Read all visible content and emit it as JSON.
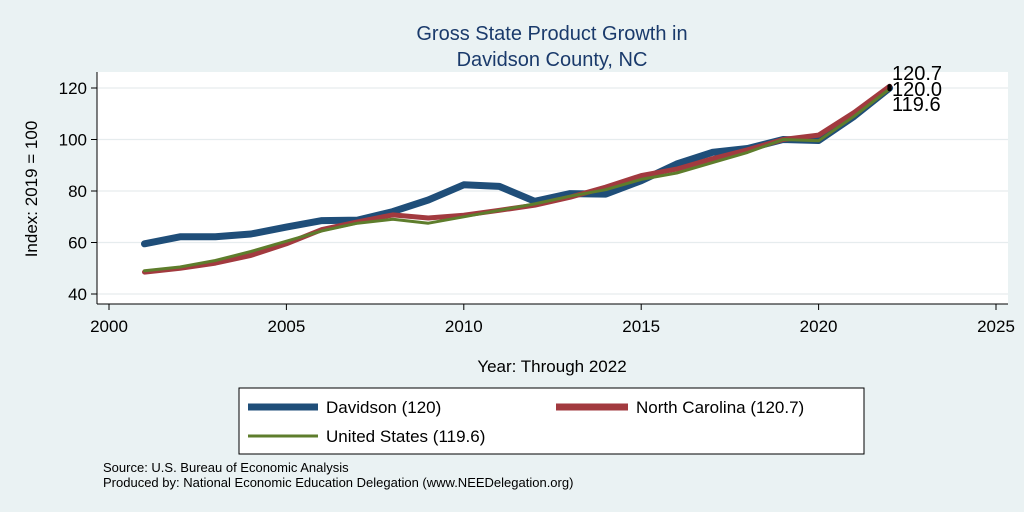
{
  "chart_data": {
    "type": "line",
    "title": [
      "Gross State Product Growth in",
      "Davidson County, NC"
    ],
    "xlabel": "Year: Through 2022",
    "ylabel": "Index: 2019 = 100",
    "xlim": [
      2000,
      2025
    ],
    "ylim": [
      40,
      120
    ],
    "x_ticks": [
      "2000",
      "2005",
      "2010",
      "2015",
      "2020",
      "2025"
    ],
    "y_ticks": [
      "40",
      "60",
      "80",
      "100",
      "120"
    ],
    "grid": true,
    "legend_position": "bottom",
    "x": [
      2001,
      2002,
      2003,
      2004,
      2005,
      2006,
      2007,
      2008,
      2009,
      2010,
      2011,
      2012,
      2013,
      2014,
      2015,
      2016,
      2017,
      2018,
      2019,
      2020,
      2021,
      2022
    ],
    "series": [
      {
        "name": "Davidson  (120)",
        "color": "#1f4e79",
        "values": [
          59.5,
          62.2,
          62.2,
          63.3,
          66.0,
          68.5,
          68.7,
          72.0,
          76.5,
          82.4,
          81.8,
          76.0,
          79.0,
          78.8,
          84.0,
          90.5,
          95.0,
          96.5,
          100.0,
          99.6,
          109.0,
          120.0
        ]
      },
      {
        "name": "North Carolina (120.7)",
        "color": "#a23a3f",
        "values": [
          48.5,
          50.0,
          52.0,
          55.0,
          59.5,
          65.0,
          68.0,
          70.7,
          69.5,
          70.6,
          72.5,
          74.5,
          77.6,
          81.5,
          86.0,
          88.5,
          92.5,
          96.0,
          100.0,
          101.7,
          110.5,
          120.7
        ]
      },
      {
        "name": "United States (119.6)",
        "color": "#5e7d2c",
        "values": [
          49.0,
          50.5,
          53.0,
          56.5,
          60.5,
          64.5,
          67.5,
          69.0,
          67.5,
          70.0,
          72.5,
          75.0,
          78.0,
          80.5,
          84.5,
          87.0,
          91.0,
          95.0,
          100.0,
          99.5,
          109.0,
          119.6
        ]
      }
    ],
    "end_labels": [
      "120.7",
      "120.0",
      "119.6"
    ]
  },
  "notes": {
    "source": "Source: U.S. Bureau of Economic Analysis",
    "produced_by": "Produced by: National Economic Education Delegation (www.NEEDelegation.org)"
  }
}
